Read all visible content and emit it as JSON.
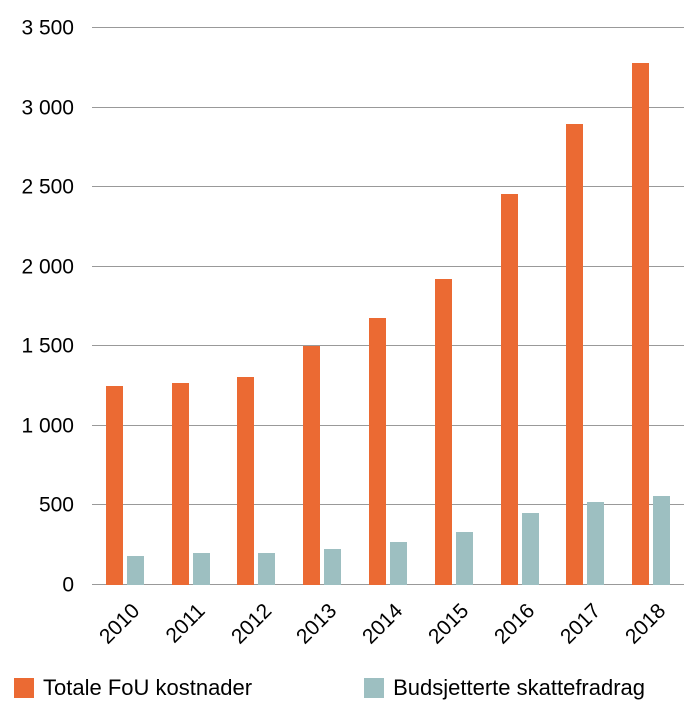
{
  "colors": {
    "background": "#FFFFFF",
    "gridline": "#999999",
    "text": "#000000"
  },
  "chart_data": {
    "type": "bar",
    "categories": [
      "2010",
      "2011",
      "2012",
      "2013",
      "2014",
      "2015",
      "2016",
      "2017",
      "2018"
    ],
    "series": [
      {
        "id": "totale-fou-kostnader",
        "name": "Totale FoU kostnader",
        "color": "#EB6A33",
        "values": [
          1250,
          1270,
          1310,
          1500,
          1680,
          1920,
          2460,
          2900,
          3280
        ]
      },
      {
        "id": "budsjetterte-skattefradrag",
        "name": "Budsjetterte skattefradrag",
        "color": "#9DBFC1",
        "values": [
          180,
          200,
          200,
          225,
          270,
          335,
          450,
          520,
          560
        ]
      }
    ],
    "ylim": [
      0,
      3500
    ],
    "yticks": [
      {
        "value": 0,
        "label": "0"
      },
      {
        "value": 500,
        "label": "500"
      },
      {
        "value": 1000,
        "label": "1 000"
      },
      {
        "value": 1500,
        "label": "1 500"
      },
      {
        "value": 2000,
        "label": "2 000"
      },
      {
        "value": 2500,
        "label": "2 500"
      },
      {
        "value": 3000,
        "label": "3 000"
      },
      {
        "value": 3500,
        "label": "3 500"
      }
    ],
    "grid": true,
    "legend_position": "bottom"
  }
}
